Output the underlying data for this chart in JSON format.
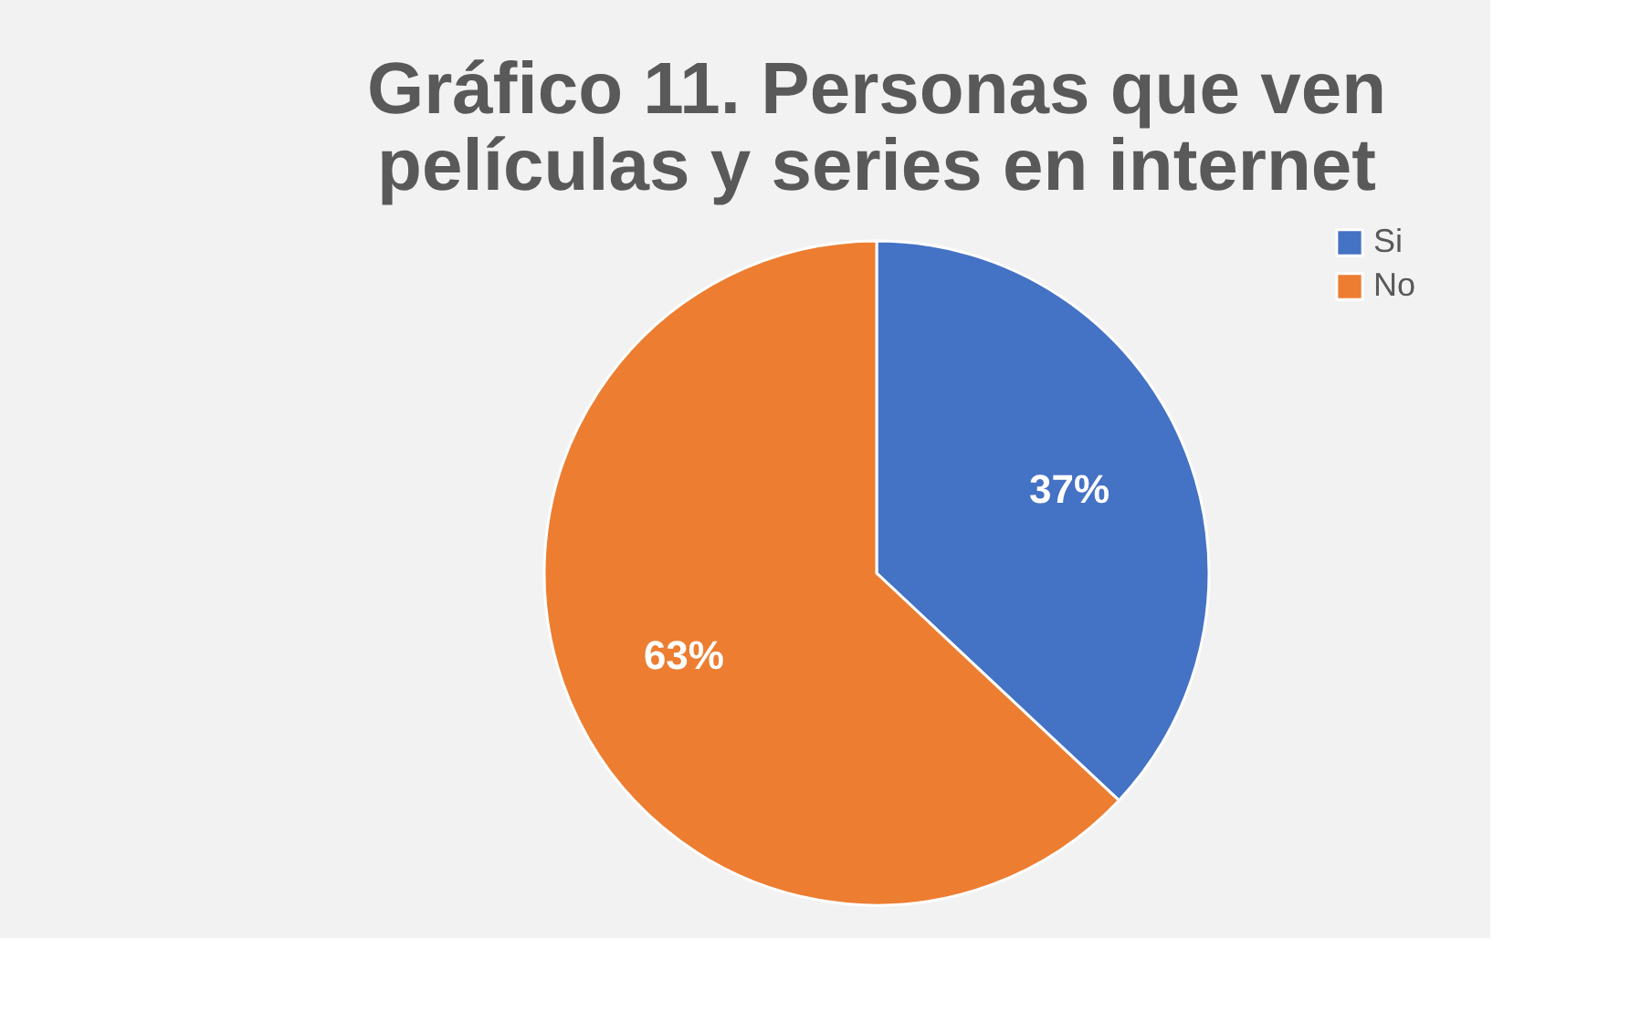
{
  "chart_data": {
    "type": "pie",
    "title": "Gráfico 11. Personas que ven películas y series en internet",
    "categories": [
      "Si",
      "No"
    ],
    "values": [
      37,
      63
    ],
    "colors": [
      "#4472c4",
      "#ed7d31"
    ],
    "value_labels": [
      "37%",
      "63%"
    ],
    "legend": "right"
  }
}
